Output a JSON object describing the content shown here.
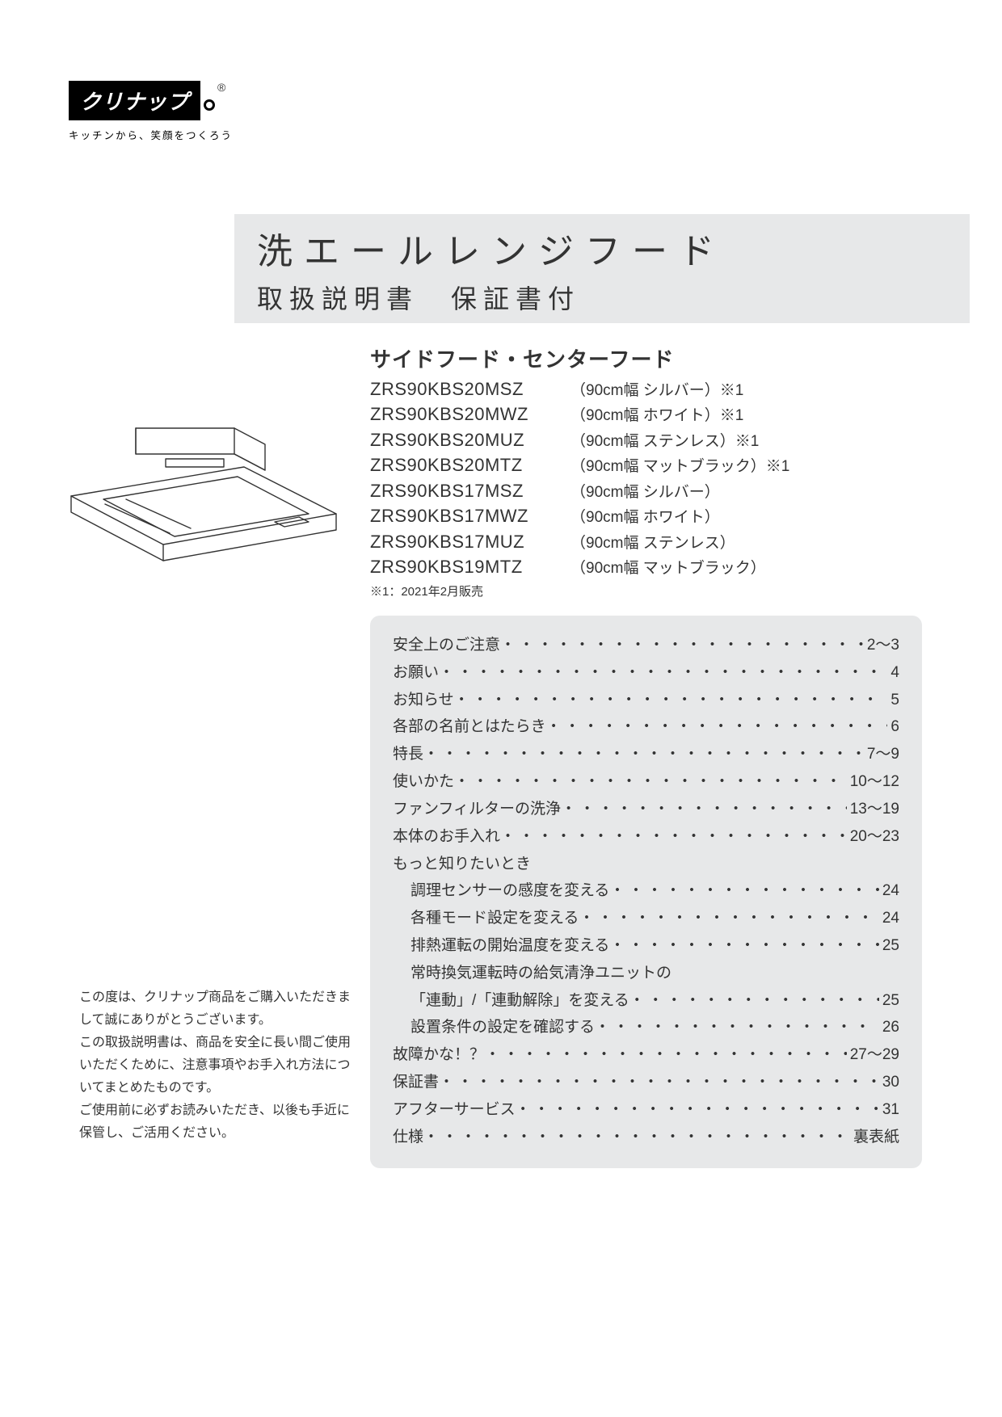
{
  "logo": {
    "brand": "クリナップ",
    "registered": "®",
    "tagline": "キッチンから、笑顔をつくろう"
  },
  "title": {
    "main": "洗エールレンジフード",
    "sub": "取扱説明書　保証書付"
  },
  "hood_type": "サイドフード・センターフード",
  "models": [
    {
      "code": "ZRS90KBS20MSZ",
      "desc": "（90cm幅 シルバー）※1"
    },
    {
      "code": "ZRS90KBS20MWZ",
      "desc": "（90cm幅 ホワイト）※1"
    },
    {
      "code": "ZRS90KBS20MUZ",
      "desc": "（90cm幅 ステンレス）※1"
    },
    {
      "code": "ZRS90KBS20MTZ",
      "desc": "（90cm幅 マットブラック）※1"
    },
    {
      "code": "ZRS90KBS17MSZ",
      "desc": "（90cm幅 シルバー）"
    },
    {
      "code": "ZRS90KBS17MWZ",
      "desc": "（90cm幅 ホワイト）"
    },
    {
      "code": "ZRS90KBS17MUZ",
      "desc": "（90cm幅 ステンレス）"
    },
    {
      "code": "ZRS90KBS19MTZ",
      "desc": "（90cm幅 マットブラック）"
    }
  ],
  "model_note": "※1：2021年2月販売",
  "toc": [
    {
      "label": "安全上のご注意",
      "page": "2～3",
      "sub": false
    },
    {
      "label": "お願い",
      "page": "4",
      "sub": false
    },
    {
      "label": "お知らせ",
      "page": "5",
      "sub": false
    },
    {
      "label": "各部の名前とはたらき",
      "page": "6",
      "sub": false
    },
    {
      "label": "特長",
      "page": "7～9",
      "sub": false
    },
    {
      "label": "使いかた",
      "page": "10～12",
      "sub": false
    },
    {
      "label": "ファンフィルターの洗浄",
      "page": "13～19",
      "sub": false
    },
    {
      "label": "本体のお手入れ",
      "page": "20～23",
      "sub": false
    },
    {
      "label": "もっと知りたいとき",
      "page": "",
      "sub": false
    },
    {
      "label": "調理センサーの感度を変える",
      "page": "24",
      "sub": true
    },
    {
      "label": "各種モード設定を変える",
      "page": "24",
      "sub": true
    },
    {
      "label": "排熱運転の開始温度を変える",
      "page": "25",
      "sub": true
    },
    {
      "label": "常時換気運転時の給気清浄ユニットの",
      "page": "",
      "sub": true
    },
    {
      "label": "「連動」/「連動解除」を変える",
      "page": "25",
      "sub": true
    },
    {
      "label": "設置条件の設定を確認する",
      "page": "26",
      "sub": true
    },
    {
      "label": "故障かな！？",
      "page": "27～29",
      "sub": false
    },
    {
      "label": "保証書",
      "page": "30",
      "sub": false
    },
    {
      "label": "アフターサービス",
      "page": "31",
      "sub": false
    },
    {
      "label": "仕様",
      "page": "裏表紙",
      "sub": false
    }
  ],
  "intro": "この度は、クリナップ商品をご購入いただきまして誠にありがとうございます。\nこの取扱説明書は、商品を安全に長い間ご使用いただくために、注意事項やお手入れ方法についてまとめたものです。\nご使用前に必ずお読みいただき、以後も手近に保管し、ご活用ください。",
  "colors": {
    "band_bg": "#e7e8e9",
    "toc_bg": "#e7e8e9",
    "text": "#333333"
  }
}
